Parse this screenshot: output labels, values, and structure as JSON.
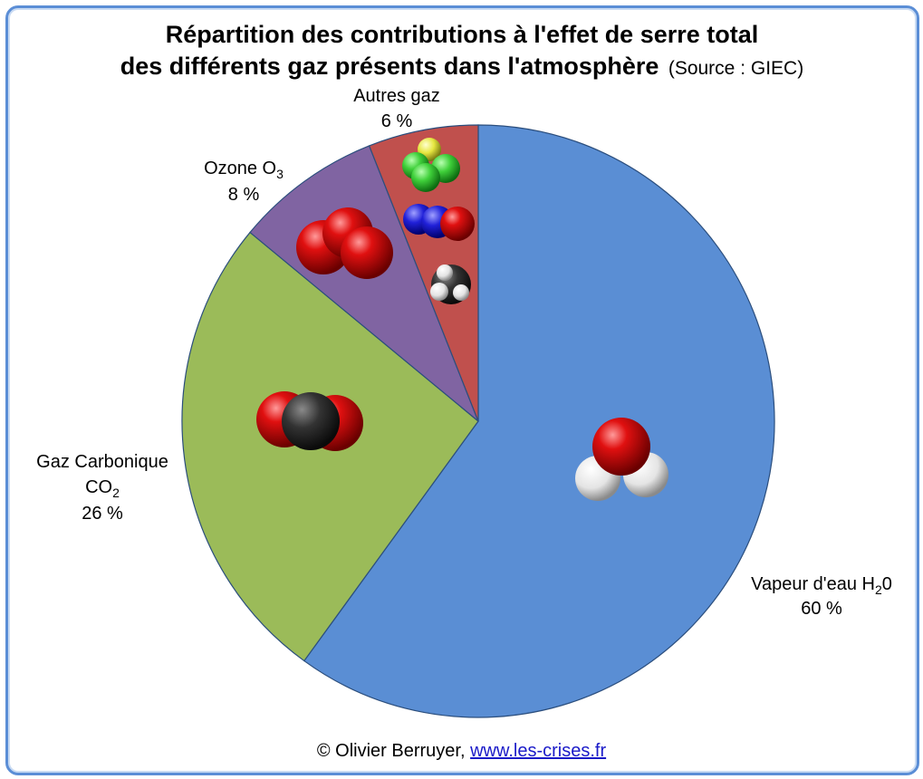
{
  "chart_data": {
    "type": "pie",
    "title_line1": "Répartition des contributions à l'effet de serre total",
    "title_line2": "des différents gaz présents dans l'atmosphère",
    "source": "(Source : GIEC)",
    "start_angle_deg": 0,
    "direction": "clockwise",
    "slices": [
      {
        "key": "vapeur",
        "label": [
          "Vapeur d'eau H",
          "2",
          "0"
        ],
        "percent_label": "60 %",
        "value": 60,
        "color": "#5a8ed4",
        "molecule": "water-molecule-icon"
      },
      {
        "key": "co2",
        "label_lines": [
          "Gaz Carbonique",
          "CO",
          "2"
        ],
        "percent_label": "26 %",
        "value": 26,
        "color": "#9bbb59",
        "molecule": "co2-molecule-icon"
      },
      {
        "key": "ozone",
        "label": [
          "Ozone O",
          "3"
        ],
        "percent_label": "8 %",
        "value": 8,
        "color": "#8064a2",
        "molecule": "ozone-molecule-icon"
      },
      {
        "key": "autres",
        "label": [
          "Autres gaz"
        ],
        "percent_label": "6 %",
        "value": 6,
        "color": "#c0504d",
        "molecule": [
          "cfc-molecule-icon",
          "n2o-molecule-icon",
          "methane-molecule-icon"
        ]
      }
    ]
  },
  "credit": {
    "text": "© Olivier Berruyer,",
    "link": "www.les-crises.fr"
  }
}
